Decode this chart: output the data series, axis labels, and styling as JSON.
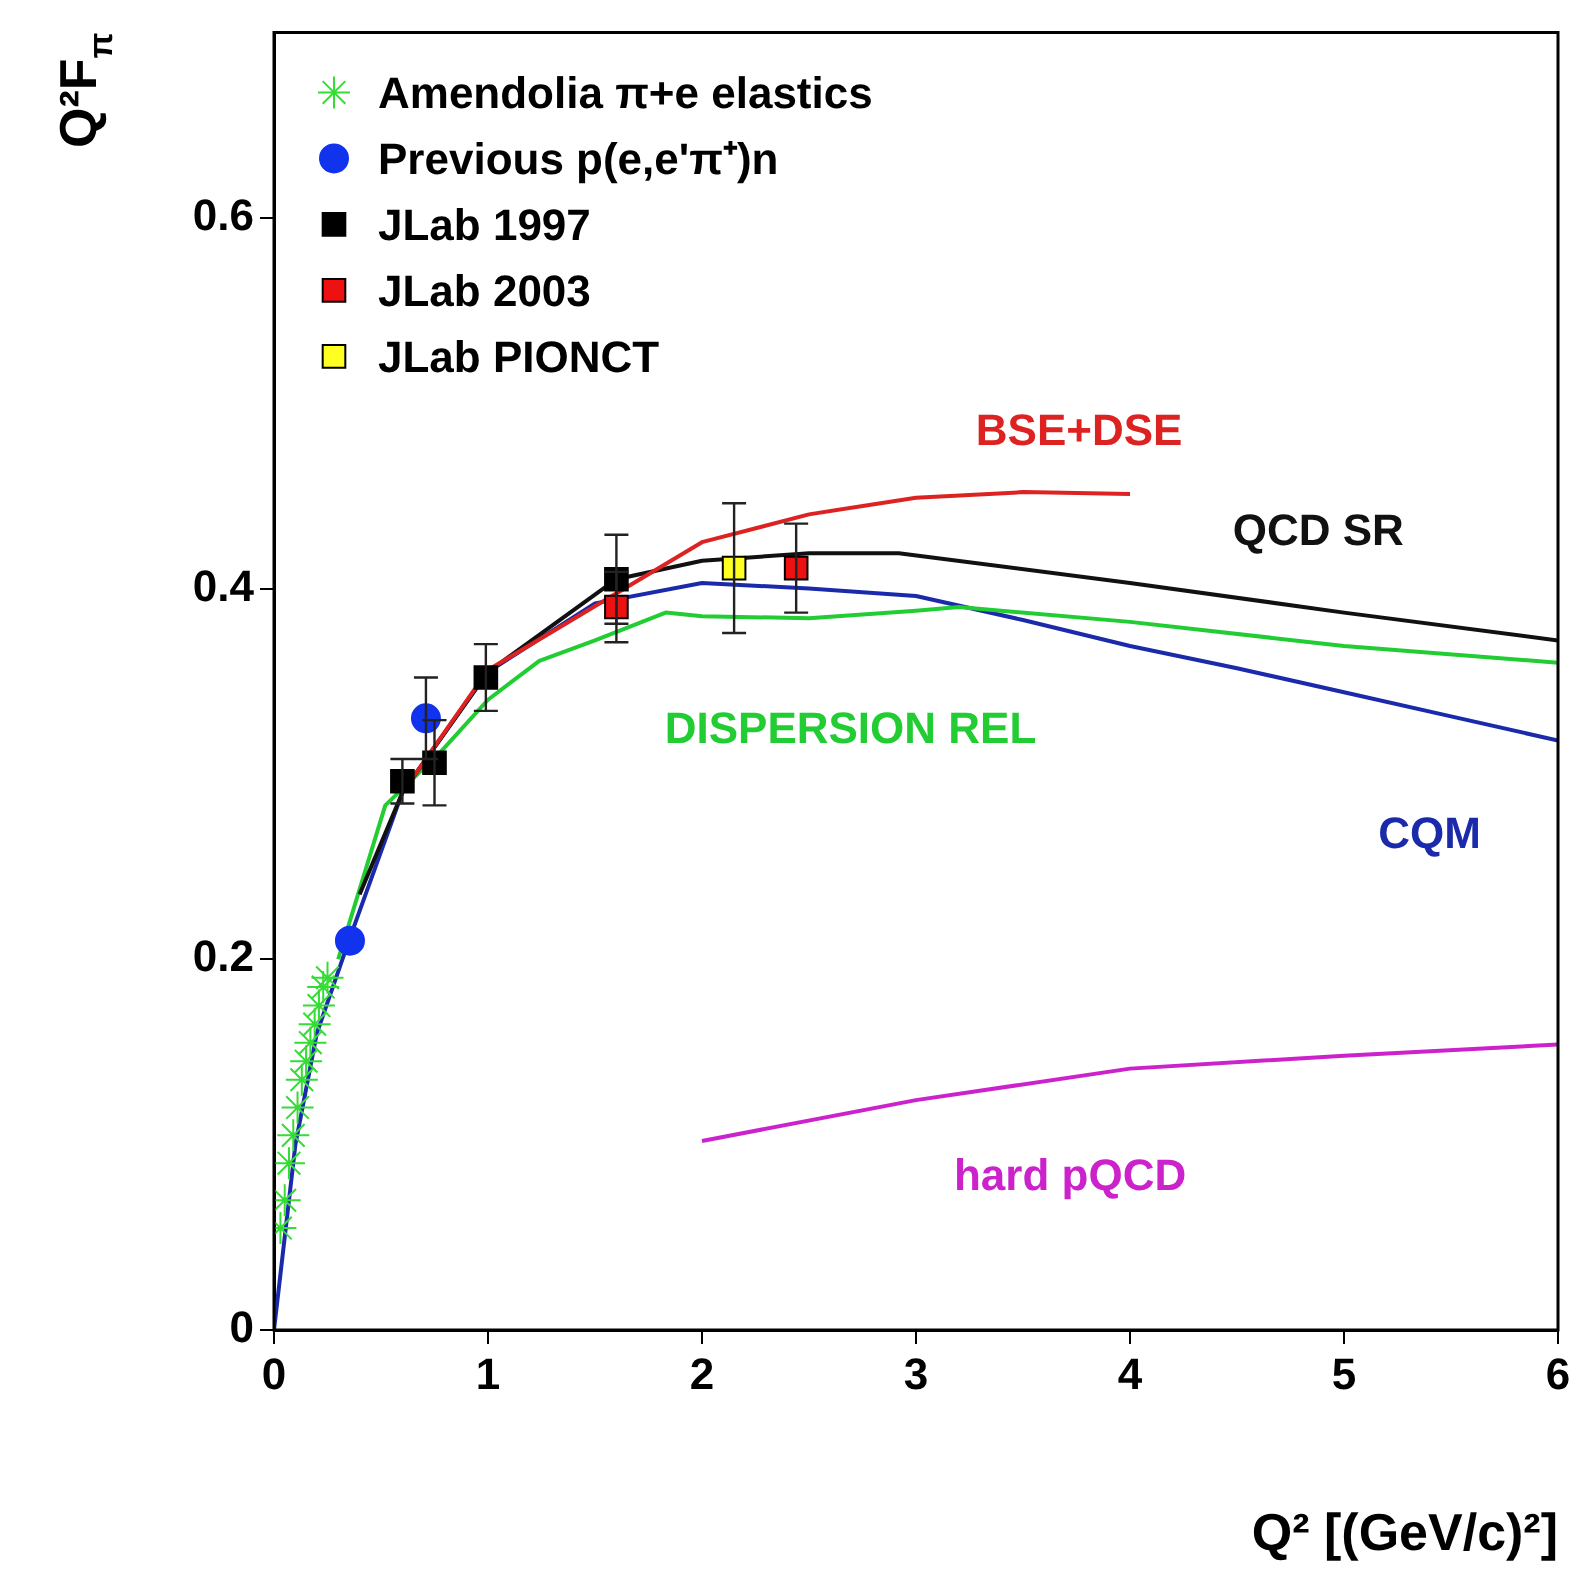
{
  "chart_data": {
    "type": "scatter",
    "xlabel": "Q² [(GeV/c)²]",
    "ylabel": "Q²F$_{π}$",
    "xlim": [
      0,
      6
    ],
    "ylim": [
      0,
      0.7
    ],
    "xticks": [
      0,
      1,
      2,
      3,
      4,
      5,
      6
    ],
    "yticks": [
      0,
      0.2,
      0.4,
      0.6
    ],
    "grid": false,
    "legend": "top left",
    "series": [
      {
        "type": "line",
        "name": "BSE+DSE",
        "color": "#dd2222",
        "marker": "none",
        "x": [
          0.6,
          1.0,
          1.6,
          2.0,
          2.5,
          3.0,
          3.5,
          4.0
        ],
        "values": [
          0.29,
          0.356,
          null,
          0.425,
          0.44,
          0.449,
          0.452,
          0.451
        ]
      },
      {
        "type": "line",
        "name": "QCD SR",
        "color": "#111111",
        "marker": "none",
        "x": [
          0.4,
          0.6,
          1.0,
          1.6,
          2.0,
          2.5,
          2.92,
          4.0,
          5.0,
          6.0
        ],
        "values": [
          0.235,
          0.29,
          0.355,
          0.405,
          0.415,
          0.419,
          0.419,
          0.403,
          0.387,
          0.372
        ]
      },
      {
        "type": "line",
        "name": "DISPERSION REL",
        "color": "#22cc33",
        "marker": "none",
        "x": [
          0.3,
          0.52,
          0.78,
          1.0,
          1.24,
          1.5,
          1.83,
          2.0,
          2.5,
          3.0,
          3.2,
          4.0,
          5.0,
          6.0
        ],
        "values": [
          0.2,
          0.283,
          0.312,
          0.34,
          0.361,
          0.372,
          0.387,
          0.385,
          0.384,
          0.388,
          0.39,
          0.382,
          0.369,
          0.36
        ]
      },
      {
        "type": "line",
        "name": "CQM",
        "color": "#1a2aaa",
        "marker": "none",
        "x": [
          0,
          0.1,
          0.2,
          0.35,
          0.6,
          1.0,
          1.5,
          2.0,
          2.5,
          3.0,
          3.5,
          4.0,
          4.5,
          5.0,
          5.5,
          6.0
        ],
        "values": [
          0,
          0.1,
          0.16,
          0.21,
          0.29,
          0.355,
          0.392,
          0.403,
          0.4,
          0.396,
          0.383,
          0.369,
          0.357,
          0.344,
          0.331,
          0.318
        ]
      },
      {
        "type": "line",
        "name": "hard pQCD",
        "color": "#cc22cc",
        "marker": "none",
        "x": [
          2.0,
          3.0,
          4.0,
          5.0,
          6.0
        ],
        "values": [
          0.102,
          0.124,
          0.141,
          0.148,
          0.154
        ]
      },
      {
        "name": "Amendolia π+e elastics",
        "color": "#33dd33",
        "marker": "cross",
        "x": [
          0.03,
          0.05,
          0.07,
          0.09,
          0.11,
          0.13,
          0.15,
          0.17,
          0.19,
          0.21,
          0.23,
          0.25
        ],
        "values": [
          0.055,
          0.07,
          0.09,
          0.105,
          0.12,
          0.135,
          0.145,
          0.155,
          0.165,
          0.175,
          0.185,
          0.19
        ]
      },
      {
        "name": "Previous p(e,e'π⁺)n",
        "color": "#1133ee",
        "marker": "circle",
        "x": [
          0.355,
          0.71
        ],
        "values": [
          0.21,
          0.33
        ],
        "errors": [
          null,
          0.022
        ]
      },
      {
        "name": "JLab 1997",
        "color": "#000000",
        "marker": "square",
        "x": [
          0.6,
          0.75,
          0.99,
          1.6
        ],
        "values": [
          0.296,
          0.306,
          0.352,
          0.405
        ],
        "errors": [
          0.012,
          0.023,
          0.018,
          0.024
        ]
      },
      {
        "name": "JLab 2003",
        "color": "#ee1111",
        "marker": "square",
        "x": [
          1.6,
          2.44
        ],
        "values": [
          0.39,
          0.411
        ],
        "errors": [
          0.019,
          0.024
        ]
      },
      {
        "name": "JLab PIONCT",
        "color": "#ffff22",
        "marker": "square",
        "x": [
          2.15
        ],
        "values": [
          0.411
        ],
        "errors": [
          0.035
        ]
      }
    ]
  }
}
